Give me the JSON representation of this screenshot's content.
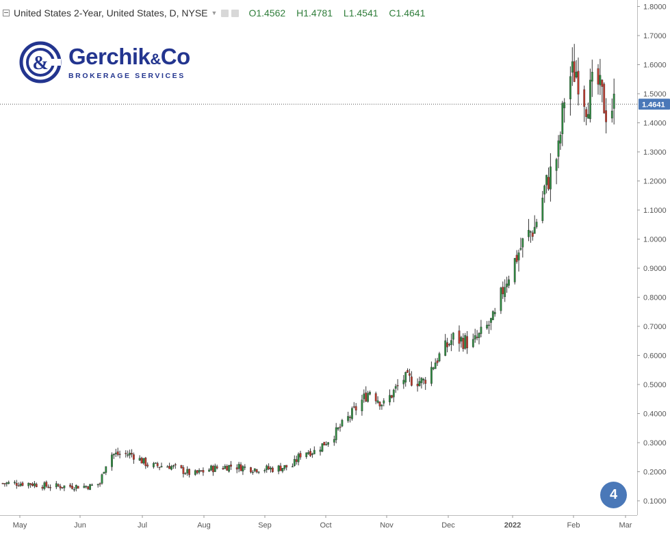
{
  "header": {
    "title": "United States 2-Year, United States, D, NYSE",
    "open_label": "O",
    "open_value": "1.4562",
    "high_label": "H",
    "high_value": "1.4781",
    "low_label": "L",
    "low_value": "1.4541",
    "close_label": "C",
    "close_value": "1.4641"
  },
  "logo": {
    "name": "Gerchik",
    "amp": "&",
    "name2": "Co",
    "subtitle": "BROKERAGE SERVICES",
    "color": "#23358f"
  },
  "badge": {
    "label": "4",
    "color": "#4a78b8"
  },
  "last_price_label": "1.4641",
  "colors": {
    "up": "#2e8b40",
    "down": "#c0392b",
    "axis_text": "#555555",
    "price_tag": "#4a78b8"
  },
  "chart_data": {
    "type": "candlestick",
    "title": "United States 2-Year, United States, D, NYSE",
    "x_tick_labels": [
      "May",
      "Jun",
      "Jul",
      "Aug",
      "Sep",
      "Oct",
      "Nov",
      "Dec",
      "2022",
      "Feb",
      "Mar"
    ],
    "y_tick_labels": [
      "0.1000",
      "0.2000",
      "0.3000",
      "0.4000",
      "0.5000",
      "0.6000",
      "0.7000",
      "0.8000",
      "0.9000",
      "1.0000",
      "1.1000",
      "1.2000",
      "1.3000",
      "1.4000",
      "1.5000",
      "1.6000",
      "1.7000",
      "1.8000"
    ],
    "ylim": [
      0.04,
      1.82
    ],
    "y_scale": "linear",
    "grid": false,
    "last_price": 1.4641,
    "approx_daily_close": [
      [
        "2021-05-01",
        0.16
      ],
      [
        "2021-05-10",
        0.16
      ],
      [
        "2021-05-20",
        0.15
      ],
      [
        "2021-06-01",
        0.15
      ],
      [
        "2021-06-10",
        0.15
      ],
      [
        "2021-06-15",
        0.16
      ],
      [
        "2021-06-17",
        0.21
      ],
      [
        "2021-06-20",
        0.26
      ],
      [
        "2021-07-01",
        0.26
      ],
      [
        "2021-07-10",
        0.22
      ],
      [
        "2021-07-20",
        0.22
      ],
      [
        "2021-08-01",
        0.19
      ],
      [
        "2021-08-10",
        0.21
      ],
      [
        "2021-08-20",
        0.22
      ],
      [
        "2021-09-01",
        0.21
      ],
      [
        "2021-09-10",
        0.21
      ],
      [
        "2021-09-20",
        0.22
      ],
      [
        "2021-09-25",
        0.27
      ],
      [
        "2021-10-01",
        0.27
      ],
      [
        "2021-10-10",
        0.32
      ],
      [
        "2021-10-20",
        0.4
      ],
      [
        "2021-10-29",
        0.48
      ],
      [
        "2021-11-05",
        0.43
      ],
      [
        "2021-11-15",
        0.52
      ],
      [
        "2021-11-25",
        0.51
      ],
      [
        "2021-12-01",
        0.58
      ],
      [
        "2021-12-10",
        0.66
      ],
      [
        "2021-12-20",
        0.64
      ],
      [
        "2021-12-31",
        0.73
      ],
      [
        "2022-01-05",
        0.85
      ],
      [
        "2022-01-15",
        1.0
      ],
      [
        "2022-01-20",
        1.04
      ],
      [
        "2022-01-25",
        1.17
      ],
      [
        "2022-02-01",
        1.3
      ],
      [
        "2022-02-05",
        1.55
      ],
      [
        "2022-02-10",
        1.58
      ],
      [
        "2022-02-15",
        1.47
      ],
      [
        "2022-02-20",
        1.55
      ],
      [
        "2022-02-25",
        1.44
      ],
      [
        "2022-03-01",
        1.4641
      ]
    ]
  }
}
